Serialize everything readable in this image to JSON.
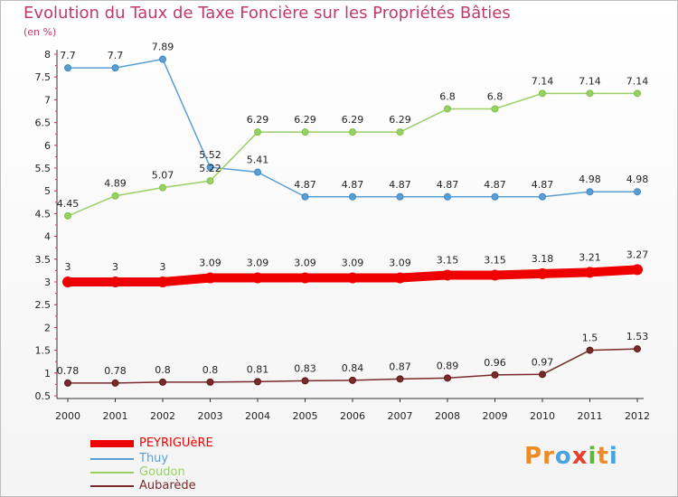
{
  "chart_data": {
    "type": "line",
    "title": "Evolution du Taux de Taxe Foncière sur les Propriétés Bâties",
    "ylabel": "(en %)",
    "x": [
      "2000",
      "2001",
      "2002",
      "2003",
      "2004",
      "2005",
      "2006",
      "2007",
      "2008",
      "2009",
      "2010",
      "2011",
      "2012"
    ],
    "ylim": [
      0.5,
      8
    ],
    "yticks": [
      "0.5",
      "1",
      "1.5",
      "2",
      "2.5",
      "3",
      "3.5",
      "4",
      "4.5",
      "5",
      "5.5",
      "6",
      "6.5",
      "7",
      "7.5",
      "8"
    ],
    "series": [
      {
        "name": "PEYRIGUèRE",
        "color": "#ee0000",
        "width": 10,
        "values": [
          3,
          3,
          3,
          3.09,
          3.09,
          3.09,
          3.09,
          3.09,
          3.15,
          3.15,
          3.18,
          3.21,
          3.27
        ],
        "labels": [
          "3",
          "3",
          "3",
          "3.09",
          "3.09",
          "3.09",
          "3.09",
          "3.09",
          "3.15",
          "3.15",
          "3.18",
          "3.21",
          "3.27"
        ]
      },
      {
        "name": "Thuy",
        "color": "#5a9fd4",
        "marker": "#3d85c6",
        "width": 1.5,
        "values": [
          7.7,
          7.7,
          7.89,
          5.52,
          5.41,
          4.87,
          4.87,
          4.87,
          4.87,
          4.87,
          4.87,
          4.98,
          4.98
        ],
        "labels": [
          "7.7",
          "7.7",
          "7.89",
          "5.52",
          "5.41",
          "4.87",
          "4.87",
          "4.87",
          "4.87",
          "4.87",
          "4.87",
          "4.98",
          "4.98"
        ]
      },
      {
        "name": "Goudon",
        "color": "#99d066",
        "marker": "#7dc242",
        "width": 1.5,
        "values": [
          4.45,
          4.89,
          5.07,
          5.22,
          6.29,
          6.29,
          6.29,
          6.29,
          6.8,
          6.8,
          7.14,
          7.14,
          7.14
        ],
        "labels": [
          "4.45",
          "4.89",
          "5.07",
          "5.22",
          "6.29",
          "6.29",
          "6.29",
          "6.29",
          "6.8",
          "6.8",
          "7.14",
          "7.14",
          "7.14"
        ]
      },
      {
        "name": "Aubarède",
        "color": "#7a2a2a",
        "marker": "#5e1616",
        "width": 1.5,
        "values": [
          0.78,
          0.78,
          0.8,
          0.8,
          0.81,
          0.83,
          0.84,
          0.87,
          0.89,
          0.96,
          0.97,
          1.5,
          1.53
        ],
        "labels": [
          "0.78",
          "0.78",
          "0.8",
          "0.8",
          "0.81",
          "0.83",
          "0.84",
          "0.87",
          "0.89",
          "0.96",
          "0.97",
          "1.5",
          "1.53"
        ]
      }
    ]
  },
  "legend": [
    {
      "name": "PEYRIGUèRE",
      "color": "#ee0000"
    },
    {
      "name": "Thuy",
      "color": "#5a9fd4"
    },
    {
      "name": "Goudon",
      "color": "#99d066"
    },
    {
      "name": "Aubarède",
      "color": "#7a2a2a"
    }
  ],
  "logo": {
    "text": "Proxiti",
    "letters": [
      "P",
      "r",
      "o",
      "x",
      "i",
      "t",
      "i"
    ],
    "colors": [
      "#f08a24",
      "#f08a24",
      "#4aa3df",
      "#e8402a",
      "#5fb83c",
      "#f08a24",
      "#4aa3df"
    ]
  }
}
